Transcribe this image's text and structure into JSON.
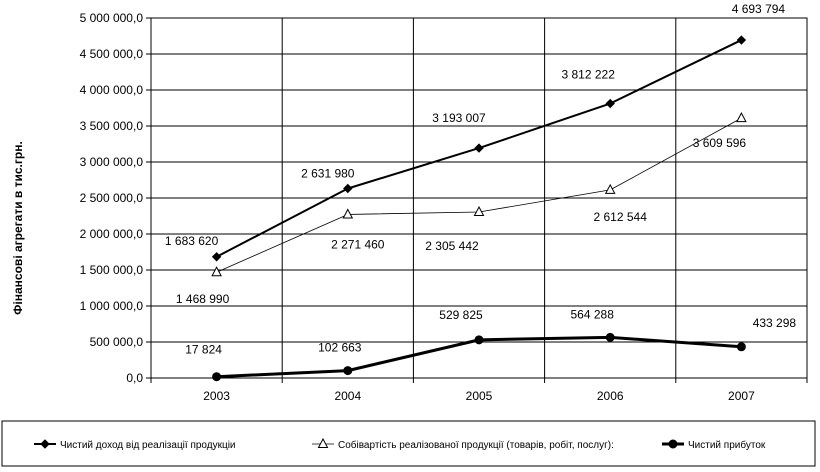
{
  "chart_data": {
    "type": "line",
    "ylabel": "Фінансові агрегати в тис.грн.",
    "xlabel": "",
    "categories": [
      "2003",
      "2004",
      "2005",
      "2006",
      "2007"
    ],
    "ylim": [
      0,
      5000000
    ],
    "ytick_values": [
      0,
      500000,
      1000000,
      1500000,
      2000000,
      2500000,
      3000000,
      3500000,
      4000000,
      4500000,
      5000000
    ],
    "ytick_labels": [
      "0,0",
      "500 000,0",
      "1 000 000,0",
      "1 500 000,0",
      "2 000 000,0",
      "2 500 000,0",
      "3 000 000,0",
      "3 500 000,0",
      "4 000 000,0",
      "4 500 000,0",
      "5 000 000,0"
    ],
    "grid": true,
    "legend_position": "bottom",
    "series": [
      {
        "name": "Чистий доход  від реалізації  продукціи",
        "values": [
          1683620,
          2631980,
          3193007,
          3812222,
          4693794
        ],
        "labels": [
          "1 683 620",
          "2 631 980",
          "3 193 007",
          "3 812 222",
          "4 693 794"
        ],
        "marker": "diamond",
        "color": "#000000"
      },
      {
        "name": "Собівартість реалізованої продукції (товарів, робіт, послуг):",
        "values": [
          1468990,
          2271460,
          2305442,
          2612544,
          3609596
        ],
        "labels": [
          "1 468 990",
          "2 271 460",
          "2 305 442",
          "2 612 544",
          "3 609 596"
        ],
        "marker": "triangle-open",
        "color": "#000000"
      },
      {
        "name": "Чистий прибуток",
        "values": [
          17824,
          102663,
          529825,
          564288,
          433298
        ],
        "labels": [
          "17 824",
          "102 663",
          "529 825",
          "564 288",
          "433 298"
        ],
        "marker": "circle",
        "color": "#000000"
      }
    ]
  }
}
